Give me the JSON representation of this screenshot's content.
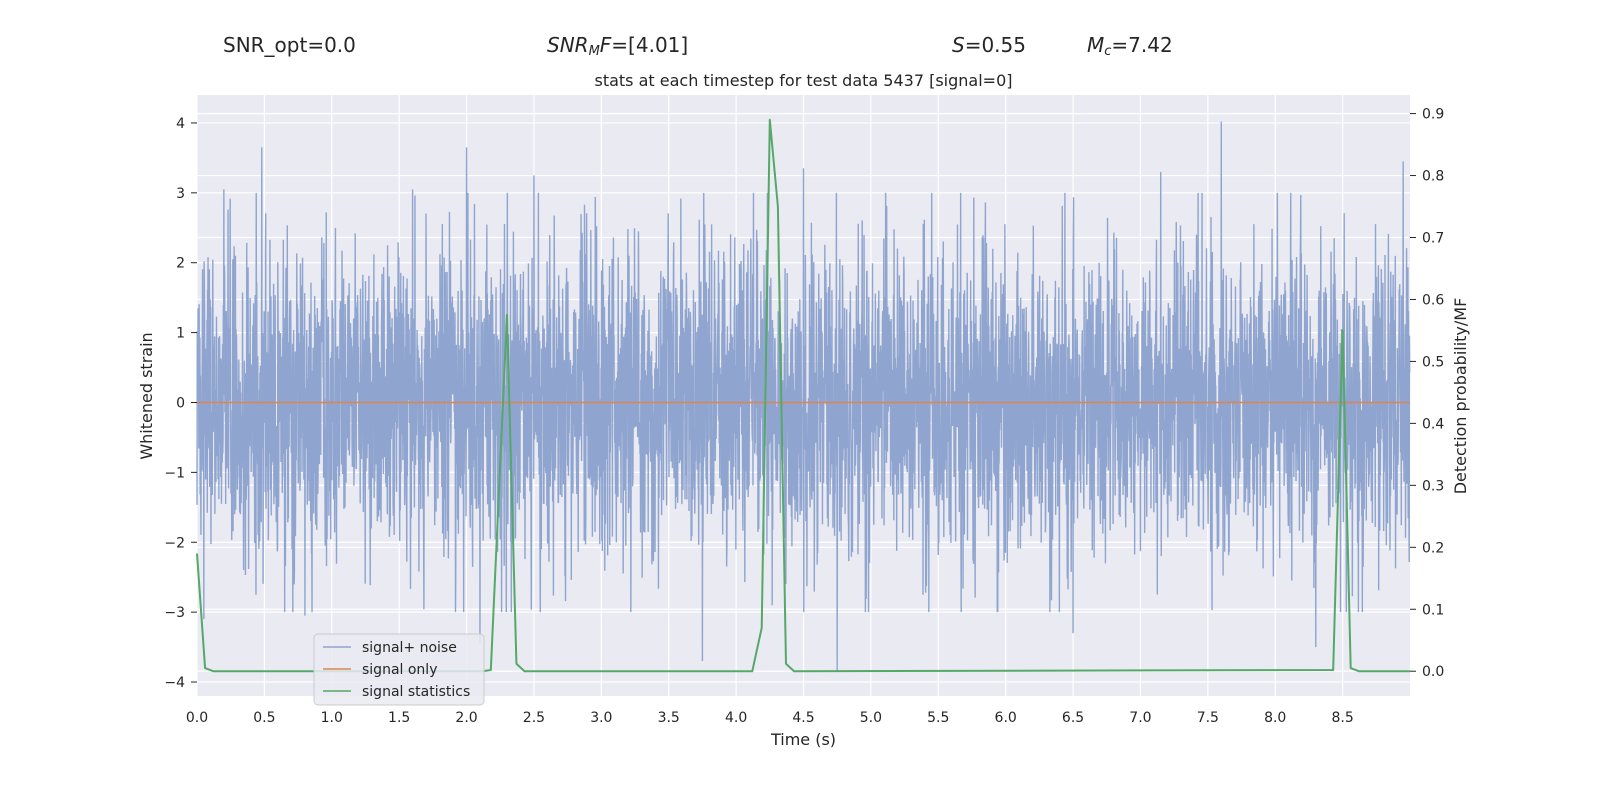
{
  "header": {
    "snr_opt": "SNR_opt=0.0",
    "snr_mf_base": "SNR",
    "snr_mf_sub": "M",
    "snr_mf_tail": "F",
    "snr_mf_value": "=[4.01]",
    "s_symbol": "S",
    "s_value": "=0.55",
    "mc_symbol": "M",
    "mc_sub": "c",
    "mc_value": "=7.42"
  },
  "chart_data": {
    "type": "line",
    "title": "stats at each timestep for test data 5437 [signal=0]",
    "xlabel": "Time (s)",
    "ylabel_left": "Whitened strain",
    "ylabel_right": "Detection probability/MF",
    "xlim": [
      0.0,
      9.0
    ],
    "ylim_left": [
      -4.2,
      4.4
    ],
    "ylim_right": [
      -0.04,
      0.93
    ],
    "x_ticks": [
      0.0,
      0.5,
      1.0,
      1.5,
      2.0,
      2.5,
      3.0,
      3.5,
      4.0,
      4.5,
      5.0,
      5.5,
      6.0,
      6.5,
      7.0,
      7.5,
      8.0,
      8.5
    ],
    "x_tick_labels": [
      "0.0",
      "0.5",
      "1.0",
      "1.5",
      "2.0",
      "2.5",
      "3.0",
      "3.5",
      "4.0",
      "4.5",
      "5.0",
      "5.5",
      "6.0",
      "6.5",
      "7.0",
      "7.5",
      "8.0",
      "8.5"
    ],
    "y_left_ticks": [
      -4,
      -3,
      -2,
      -1,
      0,
      1,
      2,
      3,
      4
    ],
    "y_left_tick_labels": [
      "−4",
      "−3",
      "−2",
      "−1",
      "0",
      "1",
      "2",
      "3",
      "4"
    ],
    "y_right_ticks": [
      0.0,
      0.1,
      0.2,
      0.3,
      0.4,
      0.5,
      0.6,
      0.7,
      0.8,
      0.9
    ],
    "y_right_tick_labels": [
      "0.0",
      "0.1",
      "0.2",
      "0.3",
      "0.4",
      "0.5",
      "0.6",
      "0.7",
      "0.8",
      "0.9"
    ],
    "grid": true,
    "legend_position": "bottom-left",
    "series": [
      {
        "name": "signal+ noise",
        "axis": "left",
        "color": "#8fa5cf",
        "kind": "noise",
        "sample_rate": 512,
        "duration": 9.0,
        "typical_amplitude": 1.4,
        "peaks": [
          {
            "x": 0.48,
            "y": 3.65
          },
          {
            "x": 2.0,
            "y": 3.65
          },
          {
            "x": 2.5,
            "y": 3.25
          },
          {
            "x": 4.5,
            "y": 3.35
          },
          {
            "x": 7.15,
            "y": 3.3
          },
          {
            "x": 7.6,
            "y": 4.02
          },
          {
            "x": 8.95,
            "y": 3.45
          },
          {
            "x": 1.6,
            "y": 3.05
          },
          {
            "x": 0.2,
            "y": 3.05
          },
          {
            "x": 4.75,
            "y": -3.85
          },
          {
            "x": 3.75,
            "y": -3.7
          },
          {
            "x": 2.1,
            "y": -3.45
          },
          {
            "x": 0.8,
            "y": -3.05
          },
          {
            "x": 6.5,
            "y": -3.3
          },
          {
            "x": 8.3,
            "y": -3.5
          },
          {
            "x": 0.05,
            "y": -3.1
          }
        ]
      },
      {
        "name": "signal only",
        "axis": "left",
        "color": "#dd8452",
        "x": [
          0.0,
          9.0
        ],
        "y": [
          0.0,
          0.0
        ]
      },
      {
        "name": "signal statistics",
        "axis": "right",
        "color": "#55a868",
        "x": [
          0.0,
          0.06,
          0.12,
          2.12,
          2.18,
          2.3,
          2.37,
          2.43,
          4.12,
          4.19,
          4.25,
          4.31,
          4.37,
          4.43,
          8.43,
          8.5,
          8.56,
          8.62,
          9.0
        ],
        "y": [
          0.19,
          0.005,
          0.0,
          0.0,
          0.002,
          0.575,
          0.012,
          0.0,
          0.0,
          0.07,
          0.89,
          0.75,
          0.012,
          0.0,
          0.002,
          0.55,
          0.005,
          0.0,
          0.0
        ]
      }
    ]
  }
}
